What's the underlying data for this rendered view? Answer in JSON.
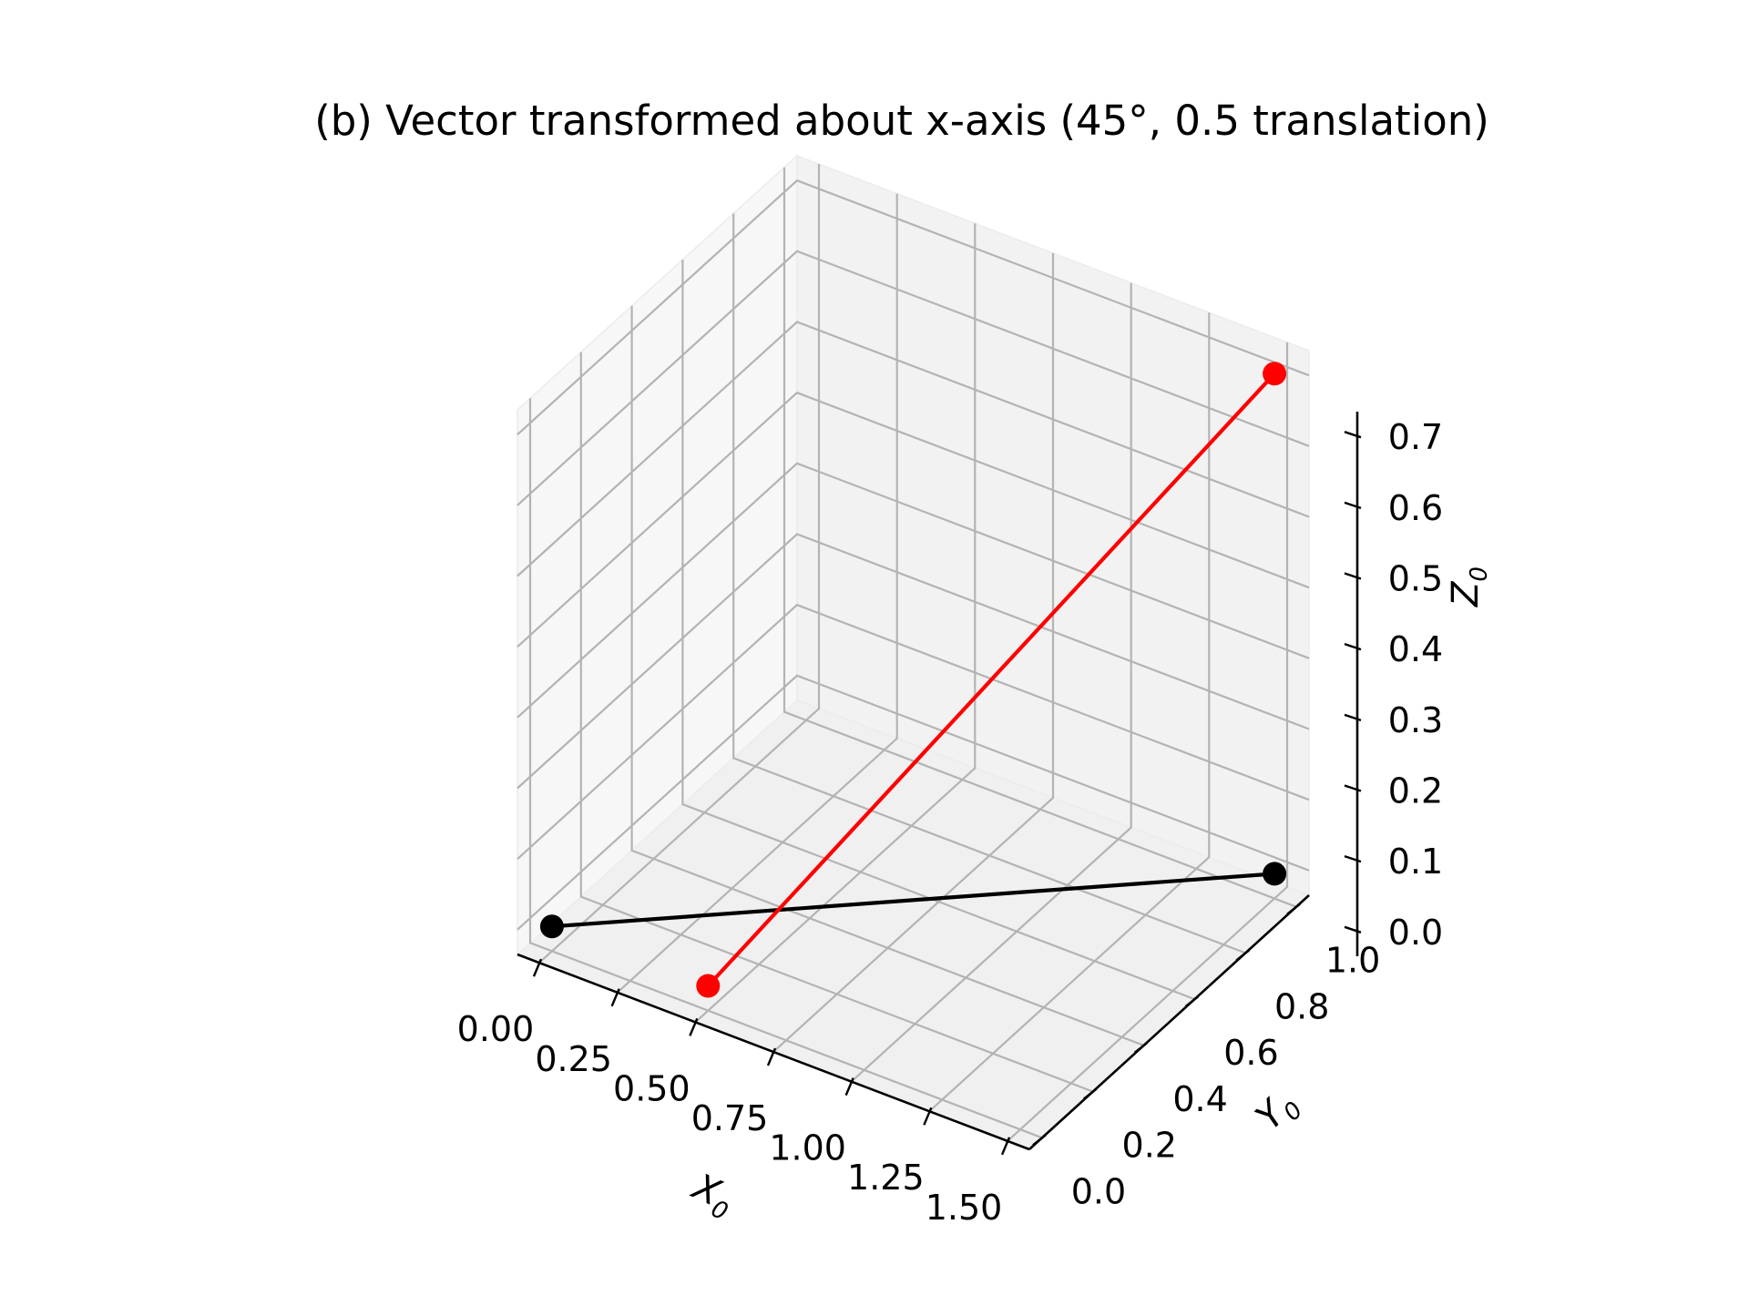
{
  "chart_data": {
    "type": "line3d",
    "title": "(b) Vector transformed about x-axis (45°, 0.5 translation)",
    "xlabel": {
      "base": "X",
      "sub": "0"
    },
    "ylabel": {
      "base": "Y",
      "sub": "0"
    },
    "zlabel": {
      "base": "Z",
      "sub": "0"
    },
    "xlim": [
      -0.07,
      1.57
    ],
    "ylim": [
      -0.05,
      1.05
    ],
    "zlim": [
      -0.035,
      0.735
    ],
    "xticks": [
      "0.00",
      "0.25",
      "0.50",
      "0.75",
      "1.00",
      "1.25",
      "1.50"
    ],
    "yticks": [
      "0.0",
      "0.2",
      "0.4",
      "0.6",
      "0.8",
      "1.0"
    ],
    "zticks": [
      "0.0",
      "0.1",
      "0.2",
      "0.3",
      "0.4",
      "0.5",
      "0.6",
      "0.7"
    ],
    "grid": true,
    "series": [
      {
        "color": "#000000",
        "points": [
          [
            0.0,
            0.0,
            0.0
          ],
          [
            1.5,
            1.0,
            0.0
          ]
        ]
      },
      {
        "color": "#ff0000",
        "points": [
          [
            0.5,
            0.0,
            0.0
          ],
          [
            1.5,
            1.0,
            0.707
          ]
        ]
      }
    ]
  }
}
